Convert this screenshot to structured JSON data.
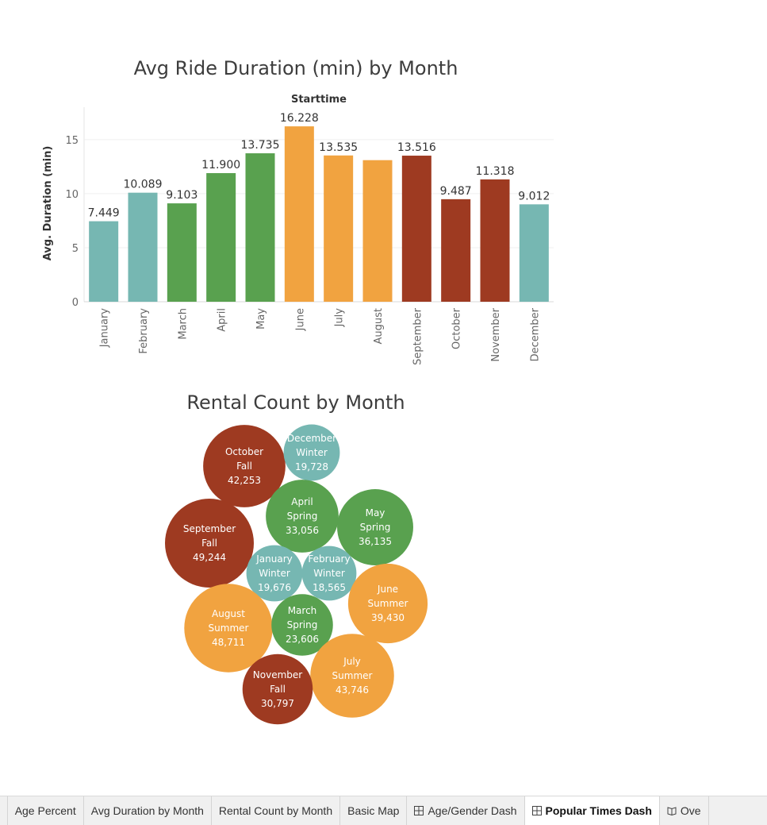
{
  "chart_data": [
    {
      "type": "bar",
      "title": "Avg Ride Duration (min) by Month",
      "header": "Starttime",
      "ylabel": "Avg. Duration (min)",
      "ylim": [
        0,
        18
      ],
      "yticks": [
        0,
        5,
        10,
        15
      ],
      "grid": true,
      "categories": [
        "January",
        "February",
        "March",
        "April",
        "May",
        "June",
        "July",
        "August",
        "September",
        "October",
        "November",
        "December"
      ],
      "values": [
        7.449,
        10.089,
        9.103,
        11.9,
        13.735,
        16.228,
        13.535,
        13.1,
        13.516,
        9.487,
        11.318,
        9.012
      ],
      "data_labels": [
        "7.449",
        "10.089",
        "9.103",
        "11.900",
        "13.735",
        "16.228",
        "13.535",
        "",
        "13.516",
        "9.487",
        "11.318",
        "9.012"
      ],
      "seasons": [
        "Winter",
        "Winter",
        "Spring",
        "Spring",
        "Spring",
        "Summer",
        "Summer",
        "Summer",
        "Fall",
        "Fall",
        "Fall",
        "Winter"
      ]
    },
    {
      "type": "bubble",
      "title": "Rental Count by Month",
      "bubbles": [
        {
          "month": "October",
          "season": "Fall",
          "count": 42253,
          "count_label": "42,253"
        },
        {
          "month": "December",
          "season": "Winter",
          "count": 19728,
          "count_label": "19,728"
        },
        {
          "month": "April",
          "season": "Spring",
          "count": 33056,
          "count_label": "33,056"
        },
        {
          "month": "May",
          "season": "Spring",
          "count": 36135,
          "count_label": "36,135"
        },
        {
          "month": "September",
          "season": "Fall",
          "count": 49244,
          "count_label": "49,244"
        },
        {
          "month": "January",
          "season": "Winter",
          "count": 19676,
          "count_label": "19,676"
        },
        {
          "month": "February",
          "season": "Winter",
          "count": 18565,
          "count_label": "18,565"
        },
        {
          "month": "June",
          "season": "Summer",
          "count": 39430,
          "count_label": "39,430"
        },
        {
          "month": "August",
          "season": "Summer",
          "count": 48711,
          "count_label": "48,711"
        },
        {
          "month": "March",
          "season": "Spring",
          "count": 23606,
          "count_label": "23,606"
        },
        {
          "month": "July",
          "season": "Summer",
          "count": 43746,
          "count_label": "43,746"
        },
        {
          "month": "November",
          "season": "Fall",
          "count": 30797,
          "count_label": "30,797"
        }
      ]
    }
  ],
  "season_colors": {
    "Winter": "#76b7b2",
    "Spring": "#59a14f",
    "Summer": "#f1a340",
    "Fall": "#9e3a21"
  },
  "tabs": [
    {
      "label": "nt",
      "icon": ""
    },
    {
      "label": "Age Percent",
      "icon": ""
    },
    {
      "label": "Avg Duration by Month",
      "icon": ""
    },
    {
      "label": "Rental Count by Month",
      "icon": ""
    },
    {
      "label": "Basic Map",
      "icon": ""
    },
    {
      "label": "Age/Gender Dash",
      "icon": "dashboard-grid-icon"
    },
    {
      "label": "Popular Times Dash",
      "icon": "dashboard-grid-icon",
      "active": true
    },
    {
      "label": "Ove",
      "icon": "story-book-icon"
    }
  ]
}
